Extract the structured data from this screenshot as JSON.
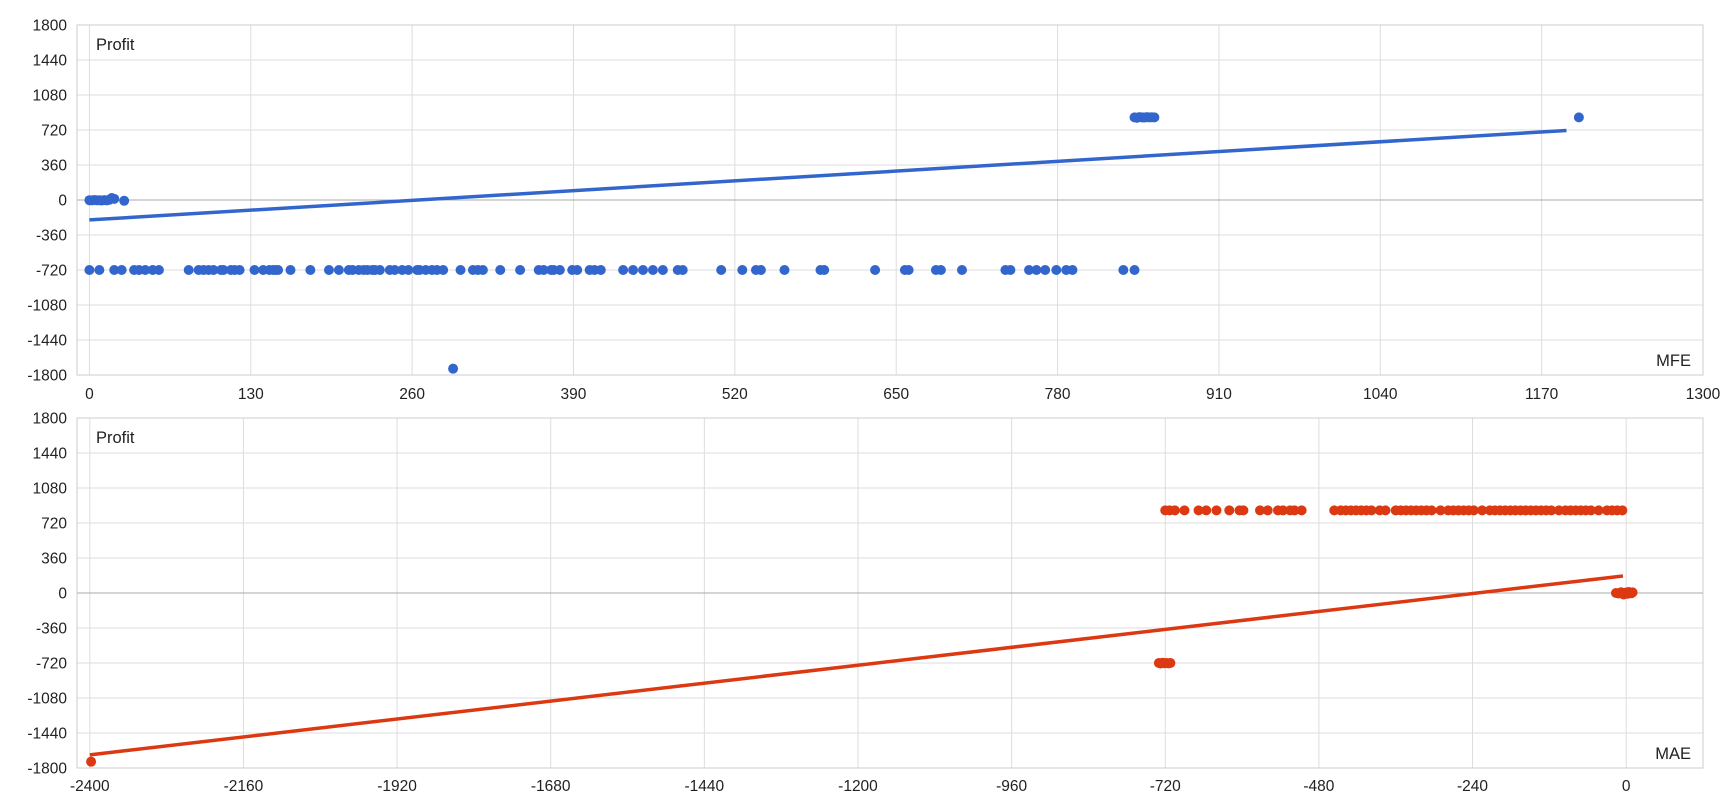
{
  "chart_data": [
    {
      "type": "scatter",
      "ylabel": "Profit",
      "xlabel": "MFE",
      "xlim": [
        -10,
        1300
      ],
      "ylim": [
        -1800,
        1800
      ],
      "xticks": [
        0,
        130,
        260,
        390,
        520,
        650,
        780,
        910,
        1040,
        1170,
        1300
      ],
      "yticks": [
        1800,
        1440,
        1080,
        720,
        360,
        0,
        -360,
        -720,
        -1080,
        -1440,
        -1800
      ],
      "grid": true,
      "color": "#3366cc",
      "points": [
        [
          0,
          -2
        ],
        [
          2,
          -4
        ],
        [
          4,
          0
        ],
        [
          6,
          -3
        ],
        [
          8,
          -2
        ],
        [
          10,
          -5
        ],
        [
          12,
          -1
        ],
        [
          14,
          -4
        ],
        [
          16,
          2
        ],
        [
          18,
          20
        ],
        [
          20,
          12
        ],
        [
          28,
          -8
        ],
        [
          293,
          -1735
        ],
        [
          1200,
          850
        ],
        [
          842,
          850
        ],
        [
          844,
          846
        ],
        [
          846,
          853
        ],
        [
          848,
          850
        ],
        [
          850,
          848
        ],
        [
          852,
          852
        ],
        [
          854,
          850
        ],
        [
          856,
          851
        ],
        [
          858,
          850
        ],
        [
          0,
          -720
        ],
        [
          8,
          -720
        ],
        [
          20,
          -720
        ],
        [
          26,
          -720
        ],
        [
          36,
          -720
        ],
        [
          40,
          -720
        ],
        [
          45,
          -720
        ],
        [
          51,
          -720
        ],
        [
          56,
          -720
        ],
        [
          80,
          -720
        ],
        [
          88,
          -720
        ],
        [
          92,
          -720
        ],
        [
          96,
          -720
        ],
        [
          100,
          -720
        ],
        [
          106,
          -720
        ],
        [
          108,
          -720
        ],
        [
          114,
          -720
        ],
        [
          117,
          -720
        ],
        [
          121,
          -720
        ],
        [
          133,
          -720
        ],
        [
          140,
          -720
        ],
        [
          145,
          -720
        ],
        [
          148,
          -720
        ],
        [
          150,
          -720
        ],
        [
          152,
          -720
        ],
        [
          162,
          -720
        ],
        [
          178,
          -720
        ],
        [
          193,
          -720
        ],
        [
          201,
          -720
        ],
        [
          209,
          -720
        ],
        [
          212,
          -720
        ],
        [
          217,
          -720
        ],
        [
          221,
          -720
        ],
        [
          224,
          -720
        ],
        [
          228,
          -720
        ],
        [
          230,
          -720
        ],
        [
          234,
          -720
        ],
        [
          242,
          -720
        ],
        [
          246,
          -720
        ],
        [
          252,
          -720
        ],
        [
          257,
          -720
        ],
        [
          264,
          -720
        ],
        [
          266,
          -720
        ],
        [
          271,
          -720
        ],
        [
          276,
          -720
        ],
        [
          280,
          -720
        ],
        [
          285,
          -720
        ],
        [
          299,
          -720
        ],
        [
          309,
          -720
        ],
        [
          313,
          -720
        ],
        [
          317,
          -720
        ],
        [
          331,
          -720
        ],
        [
          347,
          -720
        ],
        [
          362,
          -720
        ],
        [
          366,
          -720
        ],
        [
          372,
          -720
        ],
        [
          374,
          -720
        ],
        [
          379,
          -720
        ],
        [
          389,
          -720
        ],
        [
          393,
          -720
        ],
        [
          403,
          -720
        ],
        [
          407,
          -720
        ],
        [
          412,
          -720
        ],
        [
          430,
          -720
        ],
        [
          438,
          -720
        ],
        [
          446,
          -720
        ],
        [
          454,
          -720
        ],
        [
          462,
          -720
        ],
        [
          474,
          -720
        ],
        [
          478,
          -720
        ],
        [
          509,
          -720
        ],
        [
          526,
          -720
        ],
        [
          537,
          -720
        ],
        [
          541,
          -720
        ],
        [
          560,
          -720
        ],
        [
          589,
          -720
        ],
        [
          592,
          -720
        ],
        [
          633,
          -720
        ],
        [
          657,
          -720
        ],
        [
          660,
          -720
        ],
        [
          682,
          -720
        ],
        [
          686,
          -720
        ],
        [
          703,
          -720
        ],
        [
          738,
          -720
        ],
        [
          742,
          -720
        ],
        [
          757,
          -720
        ],
        [
          763,
          -720
        ],
        [
          770,
          -720
        ],
        [
          779,
          -720
        ],
        [
          787,
          -720
        ],
        [
          792,
          -720
        ],
        [
          833,
          -720
        ],
        [
          842,
          -720
        ]
      ],
      "trendline": {
        "x": [
          0,
          1190
        ],
        "y": [
          -205,
          715
        ]
      }
    },
    {
      "type": "scatter",
      "ylabel": "Profit",
      "xlabel": "MAE",
      "xlim": [
        -2420,
        120
      ],
      "ylim": [
        -1800,
        1800
      ],
      "xticks": [
        -2400,
        -2160,
        -1920,
        -1680,
        -1440,
        -1200,
        -960,
        -720,
        -480,
        -240,
        0
      ],
      "yticks": [
        1800,
        1440,
        1080,
        720,
        360,
        0,
        -360,
        -720,
        -1080,
        -1440,
        -1800
      ],
      "grid": true,
      "color": "#dc3912",
      "points": [
        [
          -2398,
          -1735
        ],
        [
          -730,
          -720
        ],
        [
          -727,
          -725
        ],
        [
          -724,
          -718
        ],
        [
          -721,
          -722
        ],
        [
          -718,
          -720
        ],
        [
          -715,
          -724
        ],
        [
          -712,
          -720
        ],
        [
          -16,
          0
        ],
        [
          -12,
          -5
        ],
        [
          -8,
          8
        ],
        [
          -4,
          -15
        ],
        [
          0,
          5
        ],
        [
          2,
          -8
        ],
        [
          4,
          10
        ],
        [
          6,
          0
        ],
        [
          8,
          -3
        ],
        [
          10,
          6
        ],
        [
          -720,
          850
        ],
        [
          -713,
          850
        ],
        [
          -705,
          850
        ],
        [
          -690,
          850
        ],
        [
          -668,
          850
        ],
        [
          -656,
          850
        ],
        [
          -640,
          850
        ],
        [
          -620,
          850
        ],
        [
          -604,
          850
        ],
        [
          -598,
          850
        ],
        [
          -572,
          850
        ],
        [
          -560,
          850
        ],
        [
          -544,
          850
        ],
        [
          -536,
          850
        ],
        [
          -525,
          850
        ],
        [
          -518,
          850
        ],
        [
          -507,
          850
        ],
        [
          -456,
          850
        ],
        [
          -446,
          850
        ],
        [
          -438,
          850
        ],
        [
          -430,
          850
        ],
        [
          -422,
          850
        ],
        [
          -414,
          850
        ],
        [
          -406,
          850
        ],
        [
          -398,
          850
        ],
        [
          -385,
          850
        ],
        [
          -376,
          850
        ],
        [
          -360,
          850
        ],
        [
          -352,
          850
        ],
        [
          -344,
          850
        ],
        [
          -336,
          850
        ],
        [
          -328,
          850
        ],
        [
          -320,
          850
        ],
        [
          -312,
          850
        ],
        [
          -304,
          850
        ],
        [
          -290,
          850
        ],
        [
          -278,
          850
        ],
        [
          -270,
          850
        ],
        [
          -262,
          850
        ],
        [
          -254,
          850
        ],
        [
          -246,
          850
        ],
        [
          -238,
          850
        ],
        [
          -225,
          850
        ],
        [
          -213,
          850
        ],
        [
          -205,
          850
        ],
        [
          -197,
          850
        ],
        [
          -189,
          850
        ],
        [
          -181,
          850
        ],
        [
          -173,
          850
        ],
        [
          -165,
          850
        ],
        [
          -157,
          850
        ],
        [
          -149,
          850
        ],
        [
          -141,
          850
        ],
        [
          -133,
          850
        ],
        [
          -125,
          850
        ],
        [
          -117,
          850
        ],
        [
          -105,
          850
        ],
        [
          -95,
          850
        ],
        [
          -87,
          850
        ],
        [
          -79,
          850
        ],
        [
          -71,
          850
        ],
        [
          -63,
          850
        ],
        [
          -55,
          850
        ],
        [
          -43,
          850
        ],
        [
          -30,
          850
        ],
        [
          -22,
          850
        ],
        [
          -14,
          850
        ],
        [
          -6,
          850
        ]
      ],
      "trendline": {
        "x": [
          -2400,
          -5
        ],
        "y": [
          -1665,
          175
        ]
      }
    }
  ]
}
